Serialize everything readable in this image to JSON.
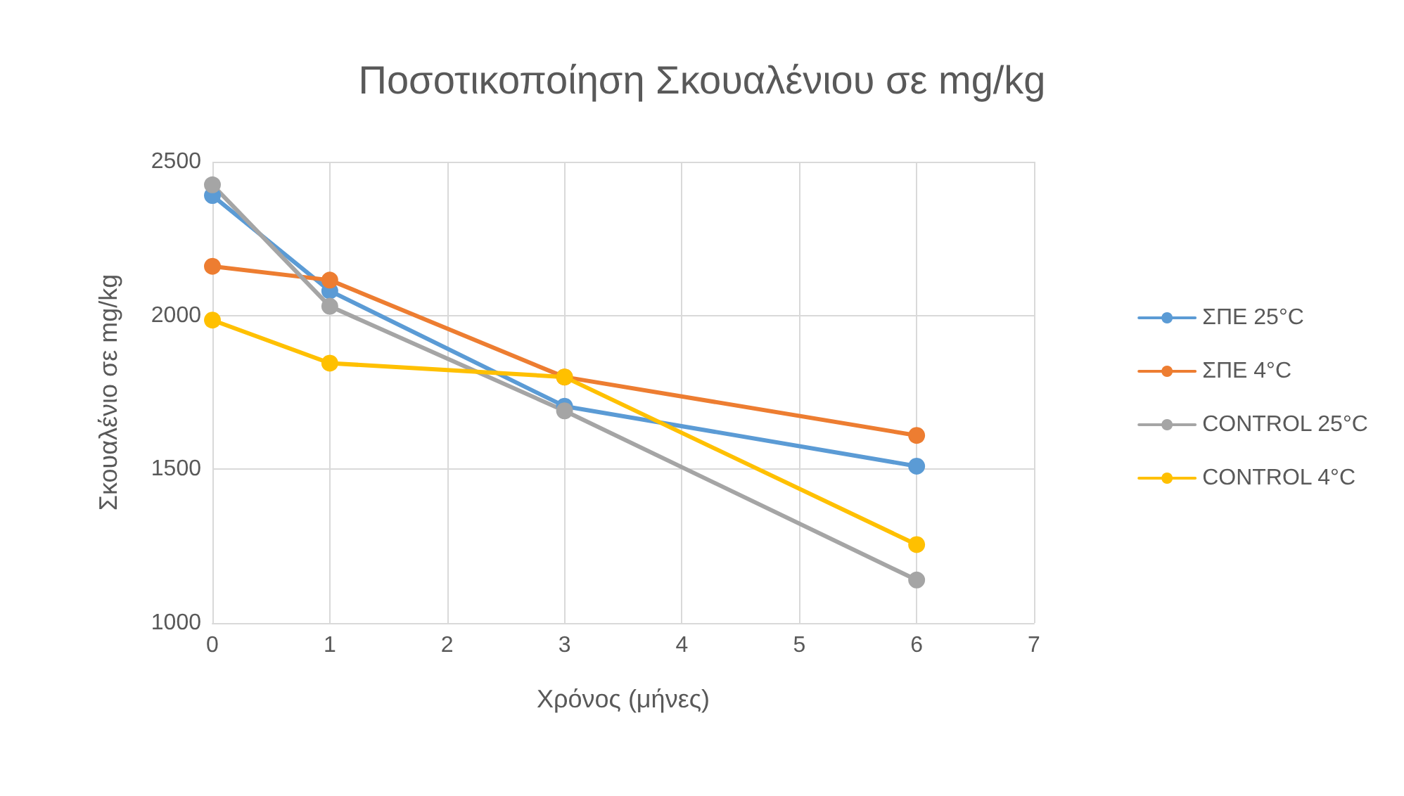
{
  "chart_data": {
    "type": "line",
    "title": "Ποσοτικοποίηση Σκουαλένιου σε mg/kg",
    "xlabel": "Χρόνος (μήνες)",
    "ylabel": "Σκουαλένιο σε mg/kg",
    "x": [
      0,
      1,
      3,
      6
    ],
    "series": [
      {
        "name": "ΣΠΕ 25°C",
        "color": "#5b9bd5",
        "values": [
          2390,
          2080,
          1705,
          1510
        ]
      },
      {
        "name": "ΣΠΕ 4°C",
        "color": "#ed7d31",
        "values": [
          2160,
          2115,
          1800,
          1610
        ]
      },
      {
        "name": "CONTROL 25°C",
        "color": "#a5a5a5",
        "values": [
          2425,
          2030,
          1690,
          1140
        ]
      },
      {
        "name": "CONTROL 4°C",
        "color": "#ffc000",
        "values": [
          1985,
          1845,
          1800,
          1255
        ]
      }
    ],
    "xlim": [
      0,
      7
    ],
    "xticks": [
      0,
      1,
      2,
      3,
      4,
      5,
      6,
      7
    ],
    "ylim": [
      1000,
      2500
    ],
    "yticks": [
      1000,
      1500,
      2000,
      2500
    ],
    "grid": true,
    "legend": "right",
    "marker": "circle",
    "line_style": "solid"
  }
}
